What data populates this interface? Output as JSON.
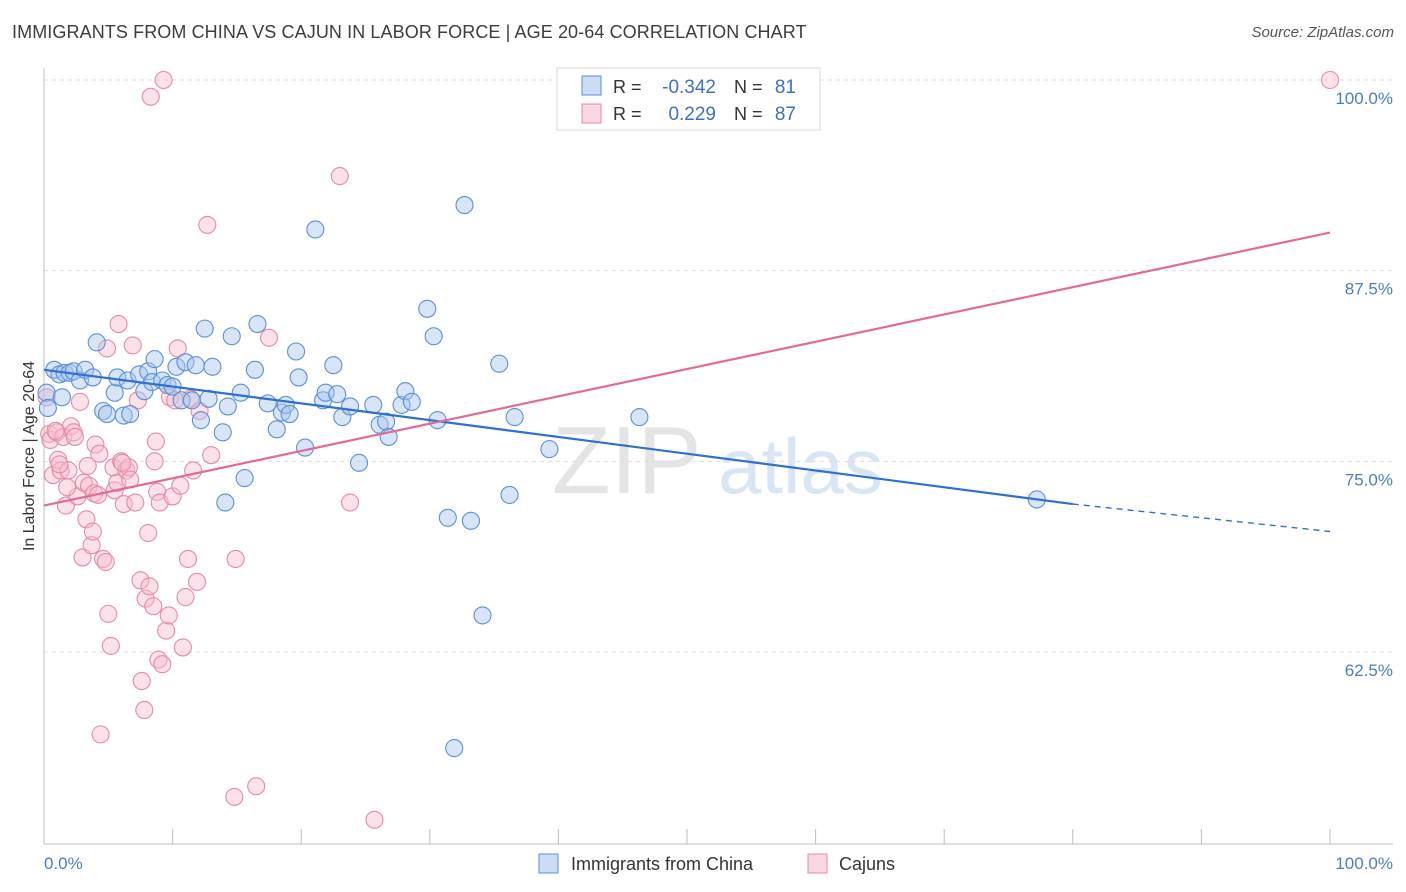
{
  "title": "IMMIGRANTS FROM CHINA VS CAJUN IN LABOR FORCE | AGE 20-64 CORRELATION CHART",
  "source": "Source: ZipAtlas.com",
  "watermark": {
    "zip": "ZIP",
    "atlas": "atlas"
  },
  "legend_box": {
    "rows": [
      {
        "r_label": "R =",
        "r_value": "-0.342",
        "n_label": "N =",
        "n_value": "81",
        "color": "#5a8fd8"
      },
      {
        "r_label": "R =",
        "r_value": "0.229",
        "n_label": "N =",
        "n_value": "87",
        "color": "#e48aa8"
      }
    ]
  },
  "chart_data": {
    "type": "scatter",
    "title": "IMMIGRANTS FROM CHINA VS CAJUN IN LABOR FORCE | AGE 20-64 CORRELATION CHART",
    "xlabel": "",
    "ylabel": "In Labor Force | Age 20-64",
    "xlim": [
      0,
      100
    ],
    "ylim": [
      50,
      100
    ],
    "x_tick_labels": [
      "0.0%",
      "100.0%"
    ],
    "y_ticks": [
      62.5,
      75.0,
      87.5,
      100.0
    ],
    "y_tick_labels": [
      "62.5%",
      "75.0%",
      "87.5%",
      "100.0%"
    ],
    "grid": true,
    "legend": "bottom-center",
    "series": [
      {
        "name": "Immigrants from China",
        "color": "#5a8fd8",
        "fill": "#a9c6ee",
        "r": -0.342,
        "n": 81,
        "trend": {
          "x_start": 0,
          "y_start": 81.0,
          "x_solid_end": 80,
          "y_solid_end": 72.2,
          "x_end": 100,
          "y_end": 70.4
        },
        "points": [
          [
            0.2,
            79.5
          ],
          [
            0.3,
            78.5
          ],
          [
            0.8,
            81.0
          ],
          [
            1.2,
            80.7
          ],
          [
            1.6,
            80.8
          ],
          [
            2.0,
            80.8
          ],
          [
            2.3,
            80.9
          ],
          [
            2.8,
            80.3
          ],
          [
            3.2,
            81.0
          ],
          [
            3.8,
            80.5
          ],
          [
            4.1,
            82.8
          ],
          [
            4.6,
            78.3
          ],
          [
            4.9,
            78.1
          ],
          [
            5.5,
            79.5
          ],
          [
            5.7,
            80.5
          ],
          [
            6.2,
            78.0
          ],
          [
            6.7,
            78.1
          ],
          [
            6.5,
            80.3
          ],
          [
            7.4,
            80.7
          ],
          [
            7.8,
            79.6
          ],
          [
            8.1,
            80.9
          ],
          [
            8.4,
            80.2
          ],
          [
            8.6,
            81.7
          ],
          [
            9.2,
            80.3
          ],
          [
            9.6,
            80.0
          ],
          [
            10.0,
            79.9
          ],
          [
            10.3,
            81.2
          ],
          [
            10.7,
            79.0
          ],
          [
            11.0,
            81.5
          ],
          [
            11.5,
            79.0
          ],
          [
            11.8,
            81.3
          ],
          [
            12.2,
            77.7
          ],
          [
            12.5,
            83.7
          ],
          [
            12.8,
            79.1
          ],
          [
            13.1,
            81.2
          ],
          [
            13.9,
            76.9
          ],
          [
            14.3,
            78.6
          ],
          [
            14.6,
            83.2
          ],
          [
            14.1,
            72.3
          ],
          [
            15.3,
            79.5
          ],
          [
            15.6,
            73.9
          ],
          [
            16.4,
            81.0
          ],
          [
            16.6,
            84.0
          ],
          [
            17.4,
            78.8
          ],
          [
            18.1,
            77.1
          ],
          [
            18.5,
            78.2
          ],
          [
            18.8,
            78.7
          ],
          [
            19.1,
            78.1
          ],
          [
            19.6,
            82.2
          ],
          [
            19.8,
            80.5
          ],
          [
            20.3,
            75.9
          ],
          [
            21.1,
            90.2
          ],
          [
            21.7,
            79.0
          ],
          [
            21.9,
            79.5
          ],
          [
            22.5,
            81.3
          ],
          [
            22.8,
            79.4
          ],
          [
            23.2,
            77.9
          ],
          [
            23.8,
            78.6
          ],
          [
            24.5,
            74.9
          ],
          [
            25.6,
            78.7
          ],
          [
            26.1,
            77.4
          ],
          [
            26.6,
            77.6
          ],
          [
            26.8,
            76.6
          ],
          [
            27.8,
            78.7
          ],
          [
            28.1,
            79.6
          ],
          [
            28.6,
            78.9
          ],
          [
            29.8,
            85.0
          ],
          [
            30.3,
            83.2
          ],
          [
            30.6,
            77.7
          ],
          [
            31.4,
            71.3
          ],
          [
            32.7,
            91.8
          ],
          [
            33.2,
            71.1
          ],
          [
            34.1,
            64.9
          ],
          [
            35.4,
            81.4
          ],
          [
            36.2,
            72.8
          ],
          [
            36.6,
            77.9
          ],
          [
            39.3,
            75.8
          ],
          [
            46.3,
            77.9
          ],
          [
            31.9,
            56.2
          ],
          [
            77.2,
            72.5
          ],
          [
            1.4,
            79.2
          ]
        ]
      },
      {
        "name": "Cajuns",
        "color": "#e48aa8",
        "fill": "#f6bccd",
        "r": 0.229,
        "n": 87,
        "trend": {
          "x_start": 0,
          "y_start": 72.1,
          "x_end": 100,
          "y_end": 90.0
        },
        "points": [
          [
            0.2,
            79.2
          ],
          [
            0.4,
            76.8
          ],
          [
            0.5,
            76.4
          ],
          [
            0.7,
            74.1
          ],
          [
            1.0,
            76.9
          ],
          [
            1.1,
            75.1
          ],
          [
            1.3,
            74.4
          ],
          [
            1.5,
            76.6
          ],
          [
            1.7,
            72.1
          ],
          [
            1.9,
            74.4
          ],
          [
            2.1,
            77.3
          ],
          [
            2.3,
            76.9
          ],
          [
            2.4,
            76.6
          ],
          [
            2.6,
            72.7
          ],
          [
            2.8,
            78.9
          ],
          [
            3.0,
            68.7
          ],
          [
            3.1,
            73.6
          ],
          [
            3.3,
            71.2
          ],
          [
            3.4,
            74.7
          ],
          [
            3.5,
            73.4
          ],
          [
            3.7,
            69.5
          ],
          [
            3.8,
            70.4
          ],
          [
            3.9,
            72.9
          ],
          [
            4.0,
            76.1
          ],
          [
            4.2,
            72.8
          ],
          [
            4.3,
            75.5
          ],
          [
            4.4,
            57.1
          ],
          [
            4.6,
            68.6
          ],
          [
            4.8,
            68.4
          ],
          [
            4.9,
            82.4
          ],
          [
            5.0,
            65.0
          ],
          [
            5.2,
            62.9
          ],
          [
            5.4,
            74.6
          ],
          [
            5.5,
            73.1
          ],
          [
            5.7,
            73.6
          ],
          [
            5.8,
            84.0
          ],
          [
            6.0,
            75.0
          ],
          [
            6.2,
            72.2
          ],
          [
            6.4,
            74.4
          ],
          [
            6.6,
            74.6
          ],
          [
            6.7,
            73.8
          ],
          [
            6.9,
            82.6
          ],
          [
            7.1,
            72.3
          ],
          [
            7.3,
            79.0
          ],
          [
            7.5,
            67.2
          ],
          [
            7.6,
            60.6
          ],
          [
            7.8,
            58.7
          ],
          [
            7.9,
            66.0
          ],
          [
            8.1,
            70.3
          ],
          [
            8.2,
            66.8
          ],
          [
            8.3,
            98.9
          ],
          [
            8.5,
            65.5
          ],
          [
            8.6,
            75.0
          ],
          [
            8.7,
            76.3
          ],
          [
            8.8,
            73.0
          ],
          [
            8.9,
            62.0
          ],
          [
            9.0,
            72.3
          ],
          [
            9.2,
            61.7
          ],
          [
            9.3,
            100.0
          ],
          [
            9.5,
            63.9
          ],
          [
            9.7,
            64.9
          ],
          [
            9.8,
            79.2
          ],
          [
            10.0,
            72.7
          ],
          [
            10.2,
            79.0
          ],
          [
            10.4,
            82.4
          ],
          [
            10.6,
            73.4
          ],
          [
            10.8,
            62.8
          ],
          [
            11.0,
            66.1
          ],
          [
            11.2,
            68.6
          ],
          [
            11.4,
            79.1
          ],
          [
            11.6,
            74.4
          ],
          [
            11.9,
            67.1
          ],
          [
            12.1,
            78.3
          ],
          [
            12.7,
            90.5
          ],
          [
            13.0,
            75.4
          ],
          [
            14.9,
            68.6
          ],
          [
            17.5,
            83.1
          ],
          [
            23.0,
            93.7
          ],
          [
            23.8,
            72.3
          ],
          [
            14.8,
            53.0
          ],
          [
            16.5,
            53.7
          ],
          [
            25.7,
            51.5
          ],
          [
            100.0,
            100.0
          ],
          [
            1.8,
            73.3
          ],
          [
            6.1,
            74.9
          ],
          [
            0.9,
            77.0
          ],
          [
            1.2,
            74.8
          ]
        ]
      }
    ]
  }
}
